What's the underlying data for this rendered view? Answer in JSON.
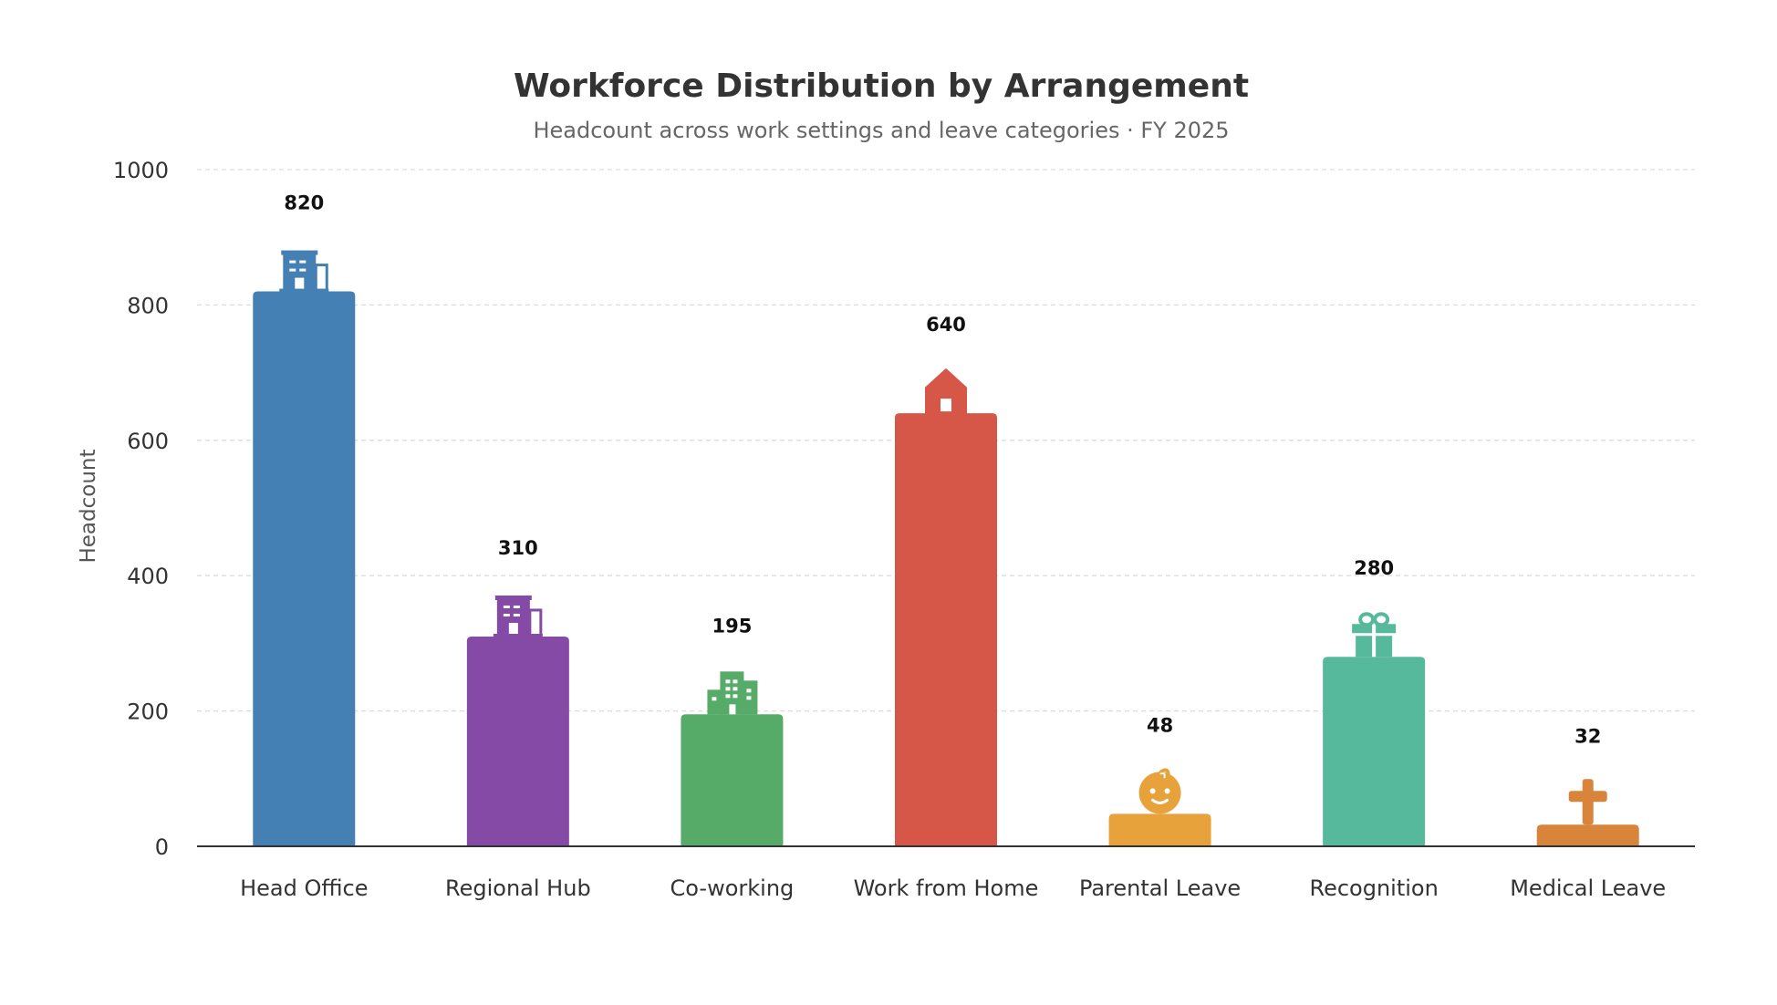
{
  "chart_data": {
    "type": "bar",
    "title": "Workforce Distribution by Arrangement",
    "subtitle": "Headcount across work settings and leave categories · FY 2025",
    "xlabel": "",
    "ylabel": "Headcount",
    "ylim": [
      0,
      1000
    ],
    "yticks": [
      0,
      200,
      400,
      600,
      800,
      1000
    ],
    "grid": true,
    "categories": [
      "Head Office",
      "Regional Hub",
      "Co-working",
      "Work from Home",
      "Parental Leave",
      "Recognition",
      "Medical Leave"
    ],
    "values": [
      820,
      310,
      195,
      640,
      48,
      280,
      32
    ],
    "colors": [
      "#4480b4",
      "#854aa5",
      "#56ab68",
      "#d65747",
      "#e8a23c",
      "#57b99b",
      "#d9843b"
    ],
    "icons": [
      "office-building-icon",
      "office-building-icon",
      "city-buildings-icon",
      "house-icon",
      "baby-icon",
      "gift-icon",
      "medical-cross-icon"
    ]
  }
}
